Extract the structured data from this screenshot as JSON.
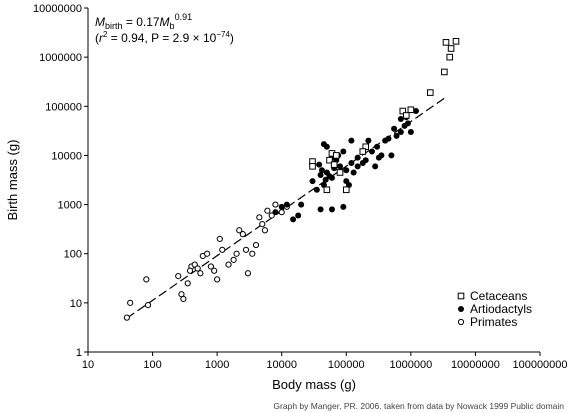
{
  "chart_data": {
    "type": "scatter",
    "title": "",
    "xlabel": "Body mass (g)",
    "ylabel": "Birth mass (g)",
    "xscale": "log",
    "yscale": "log",
    "xlim": [
      10,
      100000000
    ],
    "ylim": [
      1,
      10000000
    ],
    "x_tick_labels": [
      "10",
      "100",
      "1000",
      "10000",
      "100000",
      "1000000",
      "10000000",
      "100000000"
    ],
    "y_tick_labels": [
      "1",
      "10",
      "100",
      "1000",
      "10000",
      "100000",
      "1000000",
      "10000000"
    ],
    "grid": false,
    "legend_position": "bottom-right",
    "equation": {
      "var": "M",
      "lhs_sub": "birth",
      "rhs": " = 0.17",
      "rhs_var": "M",
      "rhs_sub": "b",
      "exponent": "0.91",
      "stats_open": "(",
      "r": "r",
      "r_exp": "2",
      "stats_mid": " = 0.94, P = 2.9 × 10",
      "p_exp": "−74",
      "stats_close": ")"
    },
    "fit_line": {
      "coef": 0.17,
      "exponent": 0.91,
      "x_range": [
        40,
        3500000
      ],
      "style": "dashed"
    },
    "credit": "Graph by Manger, PR. 2006. taken from data by Nowack 1999  Public domain",
    "series": [
      {
        "name": "Cetaceans",
        "marker": "open-square",
        "points": [
          [
            3500000,
            2000000
          ],
          [
            5000000,
            2100000
          ],
          [
            4200000,
            1500000
          ],
          [
            4000000,
            1000000
          ],
          [
            3300000,
            500000
          ],
          [
            2000000,
            190000
          ],
          [
            1000000,
            85000
          ],
          [
            750000,
            80000
          ],
          [
            850000,
            65000
          ],
          [
            200000,
            15000
          ],
          [
            180000,
            12000
          ],
          [
            60000,
            11000
          ],
          [
            70000,
            10000
          ],
          [
            55000,
            8000
          ],
          [
            65000,
            6500
          ],
          [
            30000,
            7500
          ],
          [
            80000,
            4500
          ],
          [
            50000,
            2000
          ],
          [
            100000,
            2000
          ],
          [
            30000,
            6000
          ]
        ]
      },
      {
        "name": "Artiodactyls",
        "marker": "filled-circle",
        "points": [
          [
            500000,
            10000
          ],
          [
            400000,
            20000
          ],
          [
            600000,
            25000
          ],
          [
            700000,
            30000
          ],
          [
            800000,
            40000
          ],
          [
            900000,
            45000
          ],
          [
            1000000,
            30000
          ],
          [
            850000,
            60000
          ],
          [
            300000,
            15000
          ],
          [
            350000,
            10000
          ],
          [
            250000,
            12000
          ],
          [
            200000,
            8000
          ],
          [
            150000,
            9000
          ],
          [
            120000,
            7000
          ],
          [
            100000,
            5000
          ],
          [
            80000,
            6000
          ],
          [
            70000,
            8000
          ],
          [
            60000,
            9000
          ],
          [
            50000,
            15000
          ],
          [
            45000,
            17000
          ],
          [
            30000,
            3000
          ],
          [
            40000,
            4000
          ],
          [
            50000,
            4500
          ],
          [
            60000,
            3500
          ],
          [
            45000,
            2500
          ],
          [
            35000,
            2000
          ],
          [
            40000,
            800
          ],
          [
            60000,
            800
          ],
          [
            90000,
            900
          ],
          [
            20000,
            1000
          ],
          [
            18000,
            600
          ],
          [
            12000,
            1000
          ],
          [
            10000,
            900
          ],
          [
            8000,
            700
          ],
          [
            15000,
            500
          ],
          [
            100000,
            3000
          ],
          [
            110000,
            2500
          ],
          [
            130000,
            4500
          ],
          [
            150000,
            6000
          ],
          [
            180000,
            7000
          ],
          [
            220000,
            20000
          ],
          [
            280000,
            6000
          ],
          [
            120000,
            20000
          ],
          [
            90000,
            12000
          ],
          [
            75000,
            10000
          ],
          [
            65000,
            5500
          ],
          [
            55000,
            3800
          ],
          [
            48000,
            3200
          ],
          [
            42000,
            5000
          ],
          [
            38000,
            6500
          ],
          [
            1200000,
            80000
          ],
          [
            700000,
            55000
          ],
          [
            550000,
            35000
          ],
          [
            450000,
            22000
          ],
          [
            320000,
            9000
          ]
        ]
      },
      {
        "name": "Primates",
        "marker": "open-circle",
        "points": [
          [
            40,
            5
          ],
          [
            45,
            10
          ],
          [
            85,
            9
          ],
          [
            80,
            30
          ],
          [
            250,
            35
          ],
          [
            280,
            15
          ],
          [
            300,
            12
          ],
          [
            350,
            25
          ],
          [
            400,
            55
          ],
          [
            380,
            45
          ],
          [
            450,
            60
          ],
          [
            500,
            50
          ],
          [
            550,
            40
          ],
          [
            600,
            90
          ],
          [
            700,
            100
          ],
          [
            800,
            55
          ],
          [
            900,
            45
          ],
          [
            1000,
            30
          ],
          [
            1100,
            200
          ],
          [
            1200,
            120
          ],
          [
            1500,
            60
          ],
          [
            1800,
            75
          ],
          [
            2000,
            100
          ],
          [
            2200,
            300
          ],
          [
            2500,
            250
          ],
          [
            2800,
            120
          ],
          [
            3000,
            40
          ],
          [
            3500,
            100
          ],
          [
            4000,
            150
          ],
          [
            4500,
            550
          ],
          [
            5000,
            400
          ],
          [
            5500,
            300
          ],
          [
            6000,
            750
          ],
          [
            7000,
            600
          ],
          [
            8000,
            1000
          ],
          [
            10000,
            700
          ],
          [
            12000,
            900
          ]
        ]
      }
    ]
  }
}
